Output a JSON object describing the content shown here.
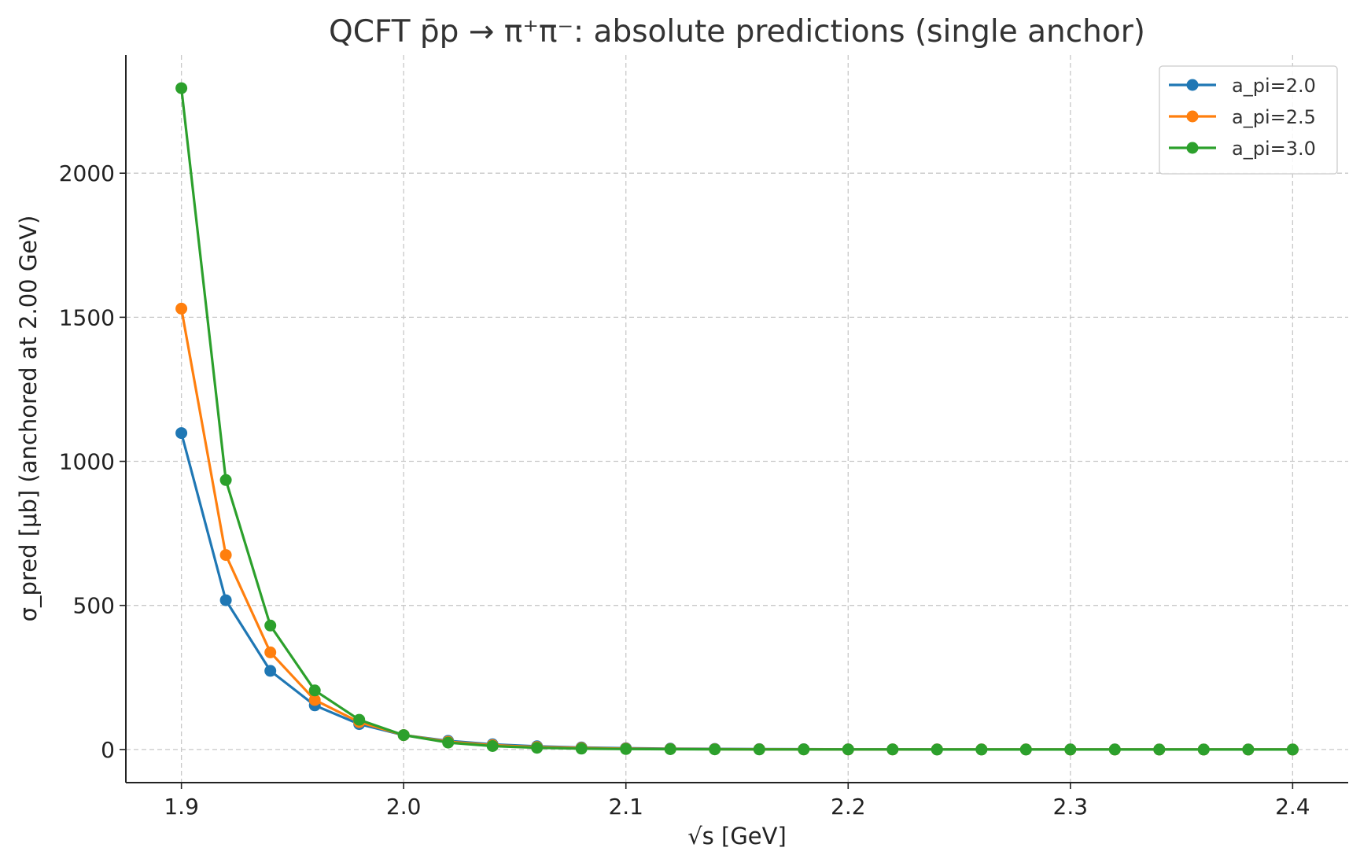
{
  "chart_data": {
    "type": "line",
    "title": "QCFT p̄p → π⁺π⁻: absolute predictions (single anchor)",
    "xlabel": "√s [GeV]",
    "ylabel": "σ_pred [μb] (anchored at 2.00 GeV)",
    "xlim": [
      1.875,
      2.425
    ],
    "ylim": [
      -115,
      2410
    ],
    "xticks": [
      1.9,
      2.0,
      2.1,
      2.2,
      2.3,
      2.4
    ],
    "xtick_labels": [
      "1.9",
      "2.0",
      "2.1",
      "2.2",
      "2.3",
      "2.4"
    ],
    "yticks": [
      0,
      500,
      1000,
      1500,
      2000
    ],
    "ytick_labels": [
      "0",
      "500",
      "1000",
      "1500",
      "2000"
    ],
    "grid": true,
    "legend_position": "top-right",
    "x": [
      1.9,
      1.92,
      1.94,
      1.96,
      1.98,
      2.0,
      2.02,
      2.04,
      2.06,
      2.08,
      2.1,
      2.12,
      2.14,
      2.16,
      2.18,
      2.2,
      2.22,
      2.24,
      2.26,
      2.28,
      2.3,
      2.32,
      2.34,
      2.36,
      2.38,
      2.4
    ],
    "series": [
      {
        "name": "a_pi=2.0",
        "color": "#1f77b4",
        "values": [
          1098,
          518,
          273,
          153,
          88,
          50,
          30,
          18,
          11,
          7,
          4.5,
          3,
          2,
          1.3,
          0.9,
          0.6,
          0.4,
          0.3,
          0.2,
          0.15,
          0.1,
          0.07,
          0.05,
          0.04,
          0.03,
          0.02
        ]
      },
      {
        "name": "a_pi=2.5",
        "color": "#ff7f0e",
        "values": [
          1530,
          675,
          337,
          172,
          95,
          50,
          27,
          15,
          8.5,
          5,
          3,
          1.8,
          1.1,
          0.7,
          0.45,
          0.3,
          0.2,
          0.13,
          0.09,
          0.06,
          0.04,
          0.03,
          0.02,
          0.015,
          0.01,
          0.007
        ]
      },
      {
        "name": "a_pi=3.0",
        "color": "#2ca02c",
        "values": [
          2295,
          935,
          430,
          205,
          103,
          50,
          24,
          12,
          6,
          3,
          1.6,
          0.9,
          0.5,
          0.3,
          0.17,
          0.1,
          0.06,
          0.04,
          0.025,
          0.015,
          0.01,
          0.006,
          0.004,
          0.003,
          0.002,
          0.001
        ]
      }
    ]
  }
}
